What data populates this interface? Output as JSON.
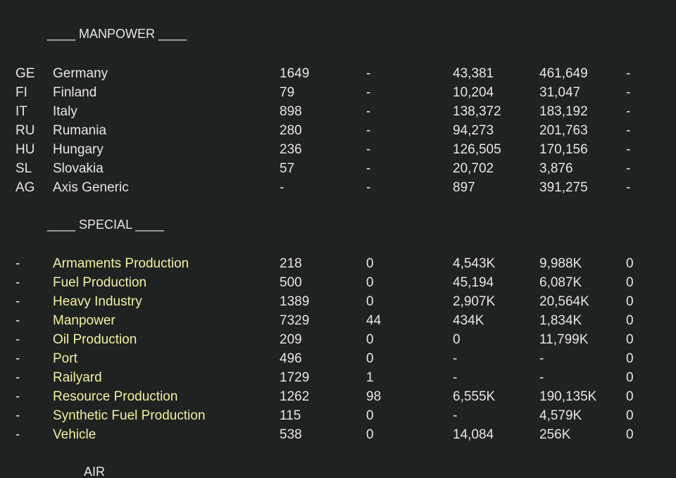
{
  "sections": {
    "manpower": {
      "header": "____ MANPOWER ____",
      "rows": [
        {
          "code": "GE",
          "name": "Germany",
          "a": "1649",
          "b": "-",
          "c": "43,381",
          "d": "461,649",
          "e": "-"
        },
        {
          "code": "FI",
          "name": "Finland",
          "a": "79",
          "b": "-",
          "c": "10,204",
          "d": "31,047",
          "e": "-"
        },
        {
          "code": "IT",
          "name": "Italy",
          "a": "898",
          "b": "-",
          "c": "138,372",
          "d": "183,192",
          "e": "-"
        },
        {
          "code": "RU",
          "name": "Rumania",
          "a": "280",
          "b": "-",
          "c": "94,273",
          "d": "201,763",
          "e": "-"
        },
        {
          "code": "HU",
          "name": "Hungary",
          "a": "236",
          "b": "-",
          "c": "126,505",
          "d": "170,156",
          "e": "-"
        },
        {
          "code": "SL",
          "name": "Slovakia",
          "a": "57",
          "b": "-",
          "c": "20,702",
          "d": "3,876",
          "e": "-"
        },
        {
          "code": "AG",
          "name": "Axis Generic",
          "a": "-",
          "b": "-",
          "c": "897",
          "d": "391,275",
          "e": "-"
        }
      ]
    },
    "special": {
      "header": "____ SPECIAL ____",
      "rows": [
        {
          "code": "-",
          "name": "Armaments Production",
          "a": "218",
          "b": "0",
          "c": "4,543K",
          "d": "9,988K",
          "e": "0"
        },
        {
          "code": "-",
          "name": "Fuel Production",
          "a": "500",
          "b": "0",
          "c": "45,194",
          "d": "6,087K",
          "e": "0"
        },
        {
          "code": "-",
          "name": "Heavy Industry",
          "a": "1389",
          "b": "0",
          "c": "2,907K",
          "d": "20,564K",
          "e": "0"
        },
        {
          "code": "-",
          "name": "Manpower",
          "a": "7329",
          "b": "44",
          "c": "434K",
          "d": "1,834K",
          "e": "0"
        },
        {
          "code": "-",
          "name": "Oil Production",
          "a": "209",
          "b": "0",
          "c": "0",
          "d": "11,799K",
          "e": "0"
        },
        {
          "code": "-",
          "name": "Port",
          "a": "496",
          "b": "0",
          "c": "-",
          "d": "-",
          "e": "0"
        },
        {
          "code": "-",
          "name": "Railyard",
          "a": "1729",
          "b": "1",
          "c": "-",
          "d": "-",
          "e": "0"
        },
        {
          "code": "-",
          "name": "Resource Production",
          "a": "1262",
          "b": "98",
          "c": "6,555K",
          "d": "190,135K",
          "e": "0"
        },
        {
          "code": "-",
          "name": "Synthetic Fuel Production",
          "a": "115",
          "b": "0",
          "c": "-",
          "d": "4,579K",
          "e": "0"
        },
        {
          "code": "-",
          "name": "Vehicle",
          "a": "538",
          "b": "0",
          "c": "14,084",
          "d": "256K",
          "e": "0"
        }
      ]
    },
    "air": {
      "header": "AIR"
    }
  },
  "colors": {
    "background": "#1e2220",
    "text": "#e6e6e6",
    "special_name": "#f4f0a4"
  }
}
